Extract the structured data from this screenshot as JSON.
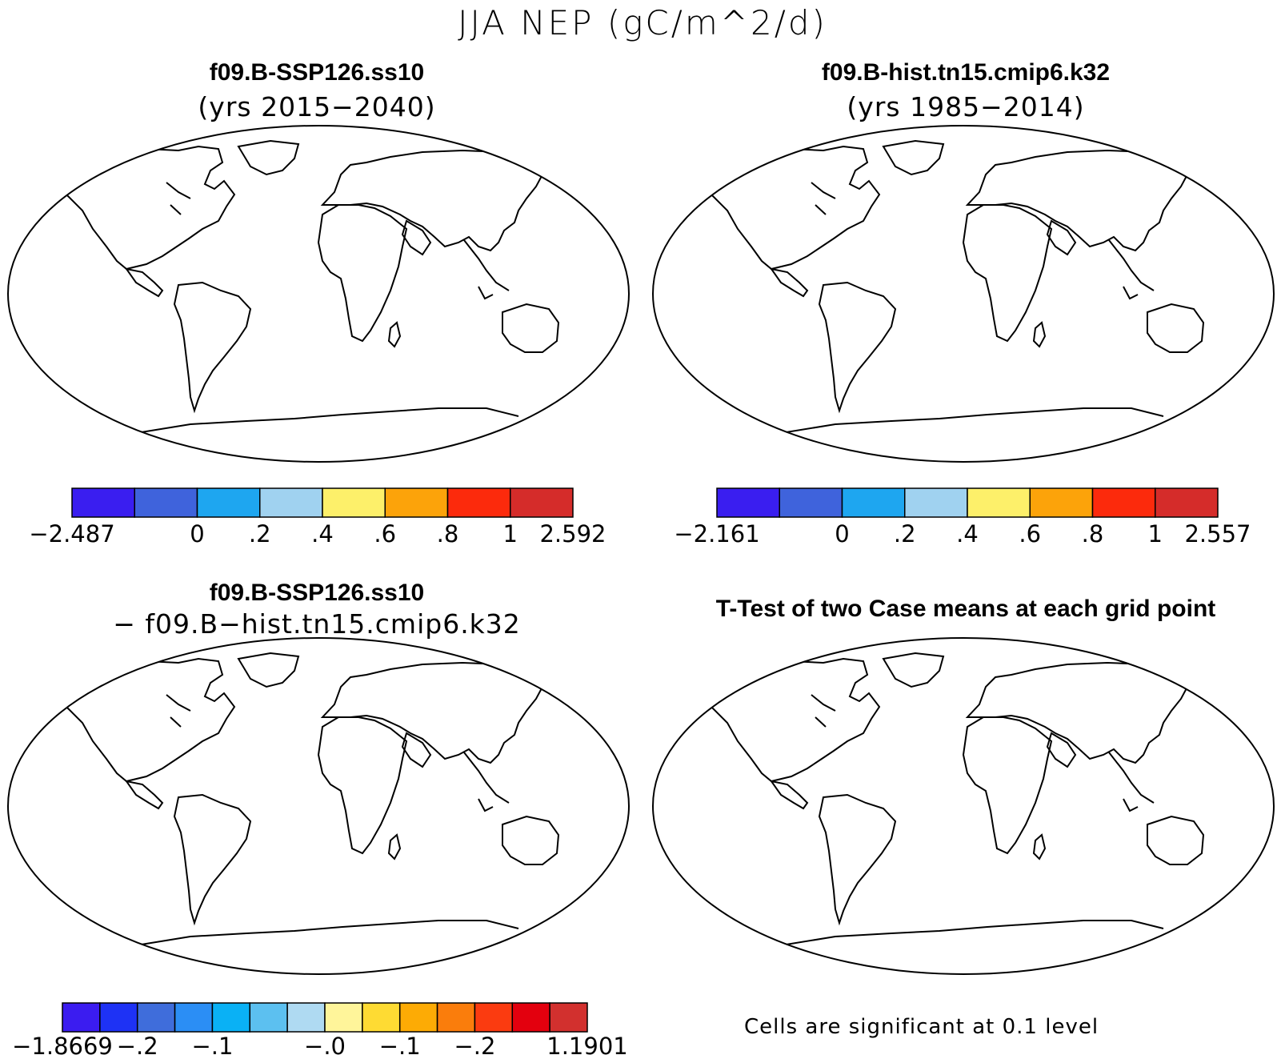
{
  "title": "JJA NEP (gC/m^2/d)",
  "panels": [
    {
      "title": "f09.B-SSP126.ss10",
      "subtitle": "(yrs 2015−2040)"
    },
    {
      "title": "f09.B-hist.tn15.cmip6.k32",
      "subtitle": "(yrs 1985−2014)"
    },
    {
      "title": "f09.B-SSP126.ss10",
      "subtitle": "− f09.B−hist.tn15.cmip6.k32"
    },
    {
      "title": "T-Test of two Case means at each grid point",
      "subtitle": ""
    }
  ],
  "colorbars": [
    {
      "colors": [
        "#3a1ef0",
        "#3f63dc",
        "#1ea6f0",
        "#a0d2f0",
        "#fdf06a",
        "#fca30a",
        "#fc2a0c",
        "#d52c2a"
      ],
      "labels": [
        "−2.487",
        "",
        "0",
        ".2",
        ".4",
        ".6",
        ".8",
        "1",
        "2.592"
      ]
    },
    {
      "colors": [
        "#3a1ef0",
        "#3f63dc",
        "#1ea6f0",
        "#a0d2f0",
        "#fdf06a",
        "#fca30a",
        "#fc2a0c",
        "#d52c2a"
      ],
      "labels": [
        "−2.161",
        "",
        "0",
        ".2",
        ".4",
        ".6",
        ".8",
        "1",
        "2.557"
      ]
    },
    {
      "colors": [
        "#3b1cf0",
        "#1e32f5",
        "#3f6ddb",
        "#2b8ef5",
        "#0ab1f5",
        "#5cc0f0",
        "#afdaf2",
        "#fff59a",
        "#fedb33",
        "#fdab05",
        "#fa7d0c",
        "#fb3b10",
        "#e3000e",
        "#d2302e"
      ],
      "labels": [
        "−1.8669",
        "",
        "−.2",
        "",
        "−.1",
        "",
        "",
        "−.0",
        "",
        "−.1",
        "",
        "−.2",
        "",
        "",
        "1.1901"
      ]
    }
  ],
  "significance_note": "Cells are significant at 0.1 level"
}
